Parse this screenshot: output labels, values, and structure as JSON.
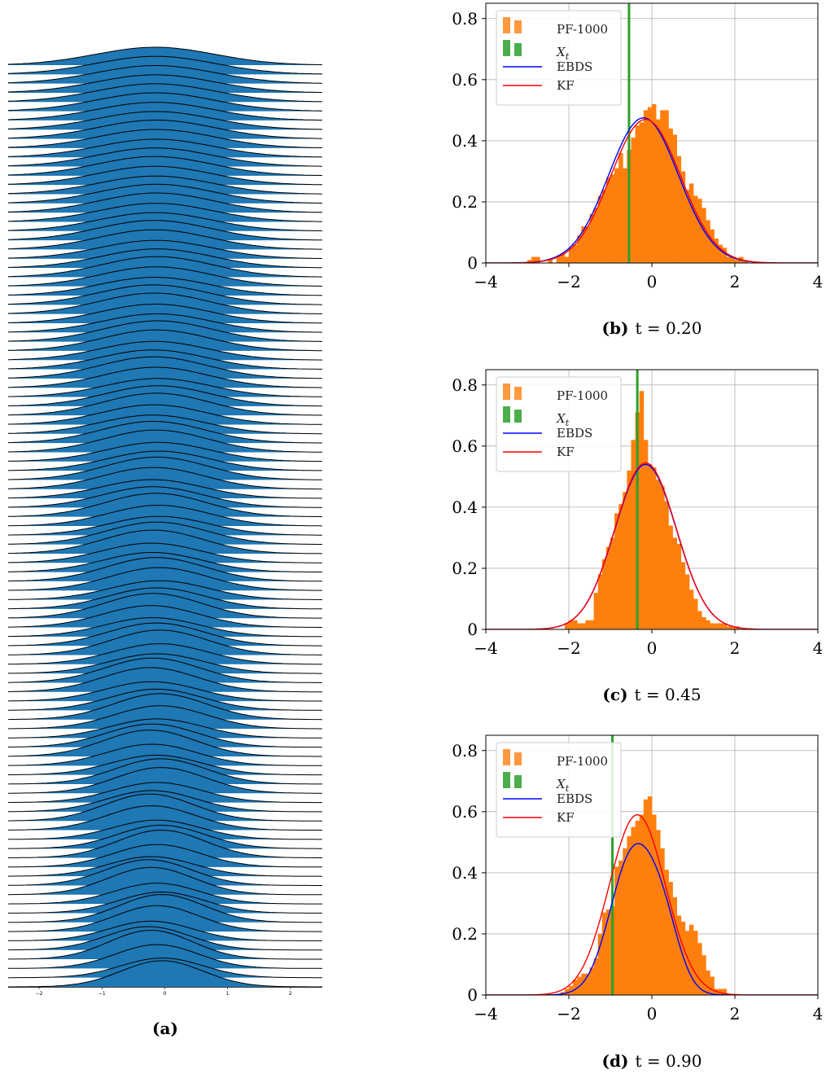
{
  "colors": {
    "ridge_fill": "#1f77b4",
    "ridge_edge": "#000000",
    "histogram": "#ff7f0e",
    "true_state": "#2ca02c",
    "ebds": "#0000ff",
    "kf": "#ff0000",
    "grid": "#b0b0b0"
  },
  "chart_data": [
    {
      "id": "a",
      "type": "area",
      "subtype": "ridgeline",
      "caption_label": "(a)",
      "caption_text": "",
      "xticks": [
        "−2",
        "−1",
        "0",
        "1",
        "2"
      ],
      "xlim": [
        -2.5,
        2.5
      ],
      "n_ridges": 101,
      "grid": false
    },
    {
      "id": "b",
      "type": "bar",
      "caption_label": "(b)",
      "caption_text": "t = 0.20",
      "xlim": [
        -4,
        4
      ],
      "ylim": [
        0,
        0.85
      ],
      "xticks": [
        "−4",
        "−2",
        "0",
        "2",
        "4"
      ],
      "yticks": [
        "0",
        "0.2",
        "0.4",
        "0.6",
        "0.8"
      ],
      "grid": true,
      "legend_position": "top-left",
      "legend": [
        "PF-1000",
        "X_t",
        "EBDS",
        "KF"
      ],
      "true_state_x": -0.55,
      "histogram": {
        "bin_start": -3.0,
        "bin_width": 0.1,
        "values": [
          0.01,
          0.02,
          0.02,
          0.0,
          0.0,
          0.01,
          0.0,
          0.02,
          0.03,
          0.02,
          0.05,
          0.06,
          0.09,
          0.12,
          0.12,
          0.16,
          0.18,
          0.22,
          0.24,
          0.28,
          0.29,
          0.31,
          0.36,
          0.31,
          0.37,
          0.41,
          0.45,
          0.46,
          0.5,
          0.51,
          0.52,
          0.47,
          0.5,
          0.5,
          0.44,
          0.42,
          0.35,
          0.3,
          0.24,
          0.26,
          0.22,
          0.21,
          0.18,
          0.14,
          0.11,
          0.08,
          0.06,
          0.05,
          0.02,
          0.02,
          0.01,
          0.02,
          0.01
        ]
      },
      "series": [
        {
          "name": "EBDS",
          "type": "gaussian",
          "mean": -0.2,
          "std": 0.84,
          "peak": 0.475
        },
        {
          "name": "KF",
          "type": "gaussian",
          "mean": -0.15,
          "std": 0.84,
          "peak": 0.47
        }
      ]
    },
    {
      "id": "c",
      "type": "bar",
      "caption_label": "(c)",
      "caption_text": "t = 0.45",
      "xlim": [
        -4,
        4
      ],
      "ylim": [
        0,
        0.85
      ],
      "xticks": [
        "−4",
        "−2",
        "0",
        "2",
        "4"
      ],
      "yticks": [
        "0",
        "0.2",
        "0.4",
        "0.6",
        "0.8"
      ],
      "grid": true,
      "legend_position": "top-left",
      "legend": [
        "PF-1000",
        "X_t",
        "EBDS",
        "KF"
      ],
      "true_state_x": -0.35,
      "histogram": {
        "bin_start": -2.1,
        "bin_width": 0.1,
        "values": [
          0.02,
          0.03,
          0.03,
          0.02,
          0.02,
          0.03,
          0.03,
          0.12,
          0.18,
          0.23,
          0.27,
          0.3,
          0.38,
          0.41,
          0.45,
          0.52,
          0.62,
          0.71,
          0.78,
          0.62,
          0.54,
          0.53,
          0.49,
          0.47,
          0.42,
          0.34,
          0.3,
          0.28,
          0.22,
          0.18,
          0.13,
          0.1,
          0.06,
          0.04,
          0.03,
          0.02,
          0.02,
          0.02,
          0.02,
          0.01,
          0.01,
          0.01
        ]
      },
      "series": [
        {
          "name": "EBDS",
          "type": "gaussian",
          "mean": -0.15,
          "std": 0.74,
          "peak": 0.54
        },
        {
          "name": "KF",
          "type": "gaussian",
          "mean": -0.15,
          "std": 0.74,
          "peak": 0.545
        }
      ]
    },
    {
      "id": "d",
      "type": "bar",
      "caption_label": "(d)",
      "caption_text": "t = 0.90",
      "xlim": [
        -4,
        4
      ],
      "ylim": [
        0,
        0.85
      ],
      "xticks": [
        "−4",
        "−2",
        "0",
        "2",
        "4"
      ],
      "yticks": [
        "0",
        "0.2",
        "0.4",
        "0.6",
        "0.8"
      ],
      "grid": true,
      "legend_position": "top-left",
      "legend": [
        "PF-1000",
        "X_t",
        "EBDS",
        "KF"
      ],
      "true_state_x": -0.95,
      "histogram": {
        "bin_start": -2.2,
        "bin_width": 0.1,
        "values": [
          0.01,
          0.02,
          0.03,
          0.05,
          0.06,
          0.07,
          0.07,
          0.09,
          0.12,
          0.2,
          0.27,
          0.28,
          0.29,
          0.42,
          0.44,
          0.48,
          0.52,
          0.55,
          0.57,
          0.59,
          0.64,
          0.65,
          0.59,
          0.54,
          0.48,
          0.41,
          0.37,
          0.32,
          0.26,
          0.24,
          0.21,
          0.23,
          0.21,
          0.17,
          0.13,
          0.08,
          0.06,
          0.02,
          0.02,
          0.02
        ]
      },
      "series": [
        {
          "name": "EBDS",
          "type": "gaussian_mix",
          "components": [
            {
              "mean": -0.45,
              "std": 0.55,
              "peak": 0.46
            },
            {
              "mean": 0.3,
              "std": 0.4,
              "peak": 0.16
            }
          ]
        },
        {
          "name": "KF",
          "type": "gaussian",
          "mean": -0.35,
          "std": 0.68,
          "peak": 0.59
        }
      ]
    }
  ]
}
